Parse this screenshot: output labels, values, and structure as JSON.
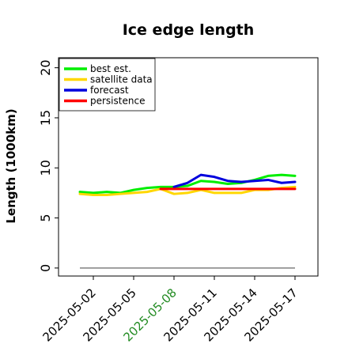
{
  "chart_data": {
    "type": "line",
    "title": "Ice edge length",
    "ylabel": "Length (1000km)",
    "xlabel": "",
    "ylim": [
      -0.8,
      21
    ],
    "yticks": [
      0,
      5,
      10,
      15,
      20
    ],
    "x": [
      "2025-05-01",
      "2025-05-02",
      "2025-05-03",
      "2025-05-04",
      "2025-05-05",
      "2025-05-06",
      "2025-05-07",
      "2025-05-08",
      "2025-05-09",
      "2025-05-10",
      "2025-05-11",
      "2025-05-12",
      "2025-05-13",
      "2025-05-14",
      "2025-05-15",
      "2025-05-16",
      "2025-05-17"
    ],
    "xticks": [
      "2025-05-02",
      "2025-05-05",
      "2025-05-08",
      "2025-05-11",
      "2025-05-14",
      "2025-05-17"
    ],
    "highlight_tick": "2025-05-08",
    "highlight_color": "#228B22",
    "baseline": {
      "y": 0,
      "color": "#808080"
    },
    "legend_position": "upper left",
    "series": [
      {
        "name": "best est.",
        "color": "#00ee00",
        "width": 3,
        "x": [
          "2025-05-01",
          "2025-05-02",
          "2025-05-03",
          "2025-05-04",
          "2025-05-05",
          "2025-05-06",
          "2025-05-07",
          "2025-05-08",
          "2025-05-09",
          "2025-05-10",
          "2025-05-11",
          "2025-05-12",
          "2025-05-13",
          "2025-05-14",
          "2025-05-15",
          "2025-05-16",
          "2025-05-17"
        ],
        "y": [
          7.6,
          7.5,
          7.6,
          7.5,
          7.8,
          8.0,
          8.1,
          8.1,
          8.2,
          8.7,
          8.6,
          8.4,
          8.5,
          8.8,
          9.2,
          9.3,
          9.2
        ]
      },
      {
        "name": "satellite data",
        "color": "#ffd700",
        "width": 3,
        "x": [
          "2025-05-01",
          "2025-05-02",
          "2025-05-03",
          "2025-05-04",
          "2025-05-05",
          "2025-05-06",
          "2025-05-07",
          "2025-05-08",
          "2025-05-09",
          "2025-05-10",
          "2025-05-11",
          "2025-05-12",
          "2025-05-13",
          "2025-05-14",
          "2025-05-15",
          "2025-05-16",
          "2025-05-17"
        ],
        "y": [
          7.4,
          7.3,
          7.3,
          7.4,
          7.5,
          7.6,
          7.9,
          7.4,
          7.5,
          7.8,
          7.5,
          7.5,
          7.5,
          7.8,
          7.8,
          8.0,
          8.1
        ]
      },
      {
        "name": "forecast",
        "color": "#0000dd",
        "width": 3,
        "x": [
          "2025-05-08",
          "2025-05-09",
          "2025-05-10",
          "2025-05-11",
          "2025-05-12",
          "2025-05-13",
          "2025-05-14",
          "2025-05-15",
          "2025-05-16",
          "2025-05-17"
        ],
        "y": [
          8.1,
          8.5,
          9.3,
          9.1,
          8.7,
          8.6,
          8.7,
          8.8,
          8.5,
          8.6
        ]
      },
      {
        "name": "persistence",
        "color": "#ff0000",
        "width": 3,
        "x": [
          "2025-05-07",
          "2025-05-08",
          "2025-05-09",
          "2025-05-10",
          "2025-05-11",
          "2025-05-12",
          "2025-05-13",
          "2025-05-14",
          "2025-05-15",
          "2025-05-16",
          "2025-05-17"
        ],
        "y": [
          7.9,
          7.9,
          7.9,
          7.9,
          7.9,
          7.9,
          7.9,
          7.9,
          7.9,
          7.9,
          7.9
        ]
      }
    ]
  }
}
